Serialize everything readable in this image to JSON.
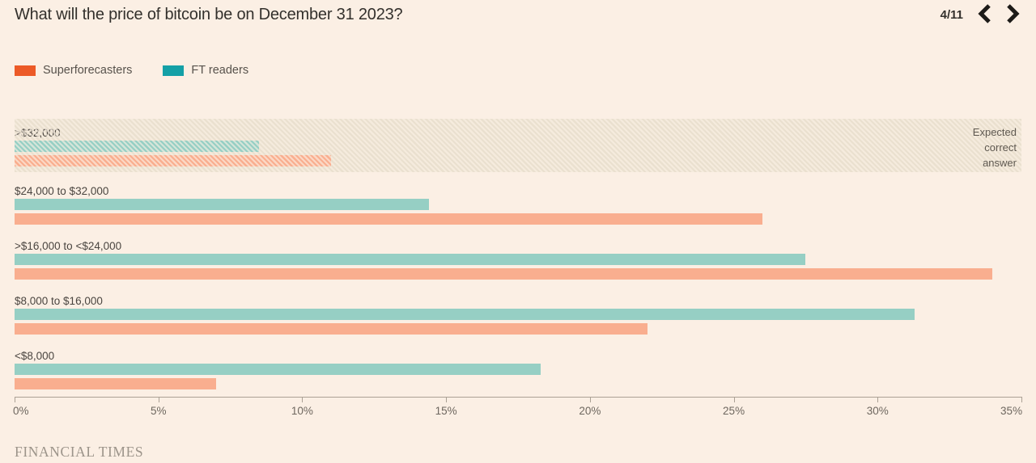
{
  "header": {
    "title": "What will the price of bitcoin be on December 31 2023?",
    "pagination": "4/11"
  },
  "legend": [
    {
      "label": "Superforecasters",
      "color": "#EC5A27"
    },
    {
      "label": "FT readers",
      "color": "#14A0A6"
    }
  ],
  "chart_data": {
    "type": "bar",
    "orientation": "horizontal",
    "title": "What will the price of bitcoin be on December 31 2023?",
    "categories": [
      ">$32,000",
      "$24,000 to $32,000",
      ">$16,000 to <$24,000",
      "$8,000 to $16,000",
      "<$8,000"
    ],
    "series": [
      {
        "name": "Superforecasters",
        "bar_color": "#F9AE8F",
        "values": [
          11,
          26,
          34,
          22,
          7
        ]
      },
      {
        "name": "FT readers",
        "bar_color": "#96CFC4",
        "values": [
          8.5,
          14.4,
          27.5,
          31.3,
          18.3
        ]
      }
    ],
    "x_ticks": [
      "0%",
      "5%",
      "10%",
      "15%",
      "20%",
      "25%",
      "30%",
      "35%"
    ],
    "x_tick_values": [
      0,
      5,
      10,
      15,
      20,
      25,
      30,
      35
    ],
    "xlim": [
      0,
      35
    ],
    "unit": "%",
    "grid": false,
    "legend_position": "top-left",
    "annotation": {
      "target_category": ">$32,000",
      "lines": [
        "Expected",
        "correct",
        "answer"
      ],
      "style": "hatched-band"
    }
  },
  "footer": {
    "brand": "FINANCIAL TIMES"
  }
}
